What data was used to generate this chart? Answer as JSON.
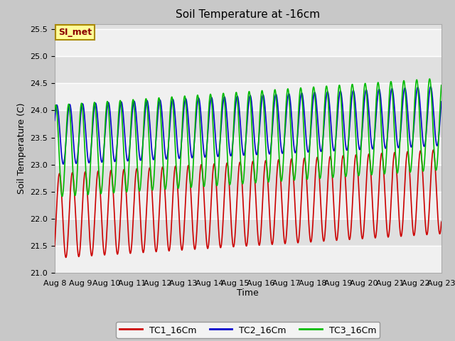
{
  "title": "Soil Temperature at -16cm",
  "xlabel": "Time",
  "ylabel": "Soil Temperature (C)",
  "ylim": [
    21.0,
    25.6
  ],
  "yticks": [
    21.0,
    21.5,
    22.0,
    22.5,
    23.0,
    23.5,
    24.0,
    24.5,
    25.0,
    25.5
  ],
  "colors": {
    "TC1": "#cc0000",
    "TC2": "#0000cc",
    "TC3": "#00bb00"
  },
  "legend_labels": [
    "TC1_16Cm",
    "TC2_16Cm",
    "TC3_16Cm"
  ],
  "annotation_text": "SI_met",
  "annotation_color": "#8b0000",
  "annotation_bg": "#ffff99",
  "n_points": 1440,
  "title_fontsize": 11,
  "axis_label_fontsize": 9,
  "tick_fontsize": 8
}
